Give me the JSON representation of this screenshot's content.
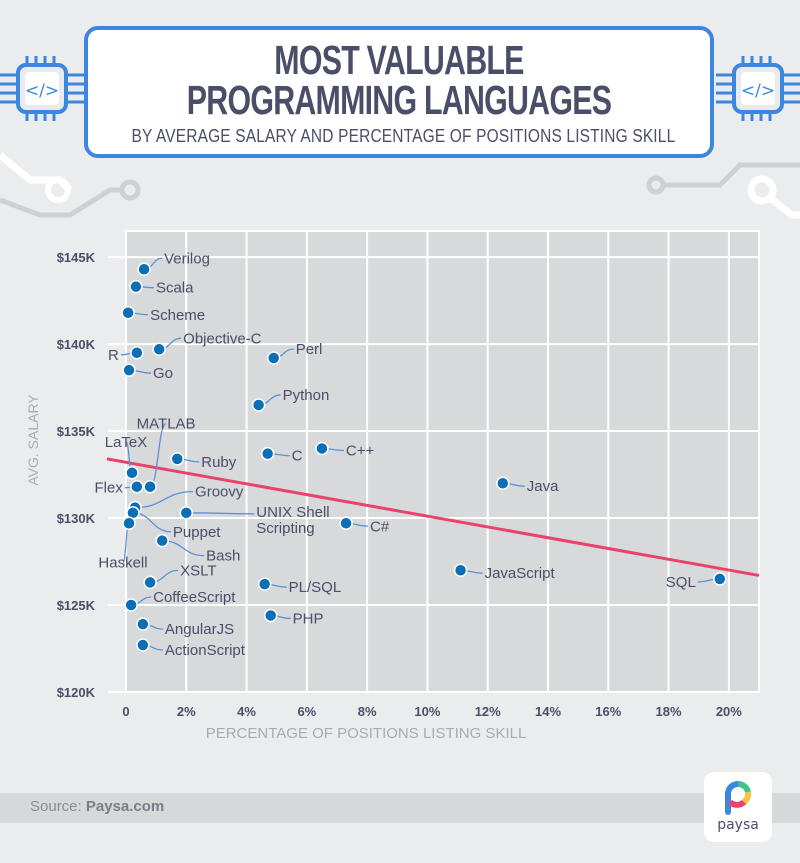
{
  "header": {
    "title_line1": "MOST VALUABLE",
    "title_line2": "PROGRAMMING LANGUAGES",
    "subtitle": "BY AVERAGE SALARY AND PERCENTAGE OF POSITIONS LISTING SKILL",
    "chip_icon": "code-brackets-icon",
    "chip_symbol": "</>"
  },
  "footer": {
    "source_prefix": "Source: ",
    "source_name": "Paysa.com",
    "logo_text": "paysa"
  },
  "colors": {
    "accent_blue": "#3c86e0",
    "dot": "#0a6fb6",
    "trend": "#e8436a",
    "text_dark": "#4a4e68",
    "plot_bg": "#d8d9db"
  },
  "chart_data": {
    "type": "scatter",
    "title": "Most Valuable Programming Languages",
    "subtitle": "By average salary and percentage of positions listing skill",
    "xlabel": "PERCENTAGE OF POSITIONS LISTING SKILL",
    "ylabel": "AVG. SALARY",
    "xlim": [
      0,
      21
    ],
    "ylim": [
      120,
      146.5
    ],
    "x_ticks": [
      0,
      2,
      4,
      6,
      8,
      10,
      12,
      14,
      16,
      18,
      20
    ],
    "x_tick_labels": [
      "0",
      "2%",
      "4%",
      "6%",
      "8%",
      "10%",
      "12%",
      "14%",
      "16%",
      "18%",
      "20%"
    ],
    "y_ticks": [
      120,
      125,
      130,
      135,
      140,
      145
    ],
    "y_tick_labels": [
      "$120K",
      "$125K",
      "$130K",
      "$135K",
      "$140K",
      "$145K"
    ],
    "grid": true,
    "points": [
      {
        "label": "Verilog",
        "x": 0.6,
        "y": 144.3
      },
      {
        "label": "Scala",
        "x": 0.33,
        "y": 143.3
      },
      {
        "label": "Scheme",
        "x": 0.07,
        "y": 141.8
      },
      {
        "label": "R",
        "x": 0.36,
        "y": 139.5
      },
      {
        "label": "Objective-C",
        "x": 1.1,
        "y": 139.7
      },
      {
        "label": "Go",
        "x": 0.1,
        "y": 138.5
      },
      {
        "label": "Perl",
        "x": 4.9,
        "y": 139.2
      },
      {
        "label": "Python",
        "x": 4.4,
        "y": 136.5
      },
      {
        "label": "C",
        "x": 4.7,
        "y": 133.7
      },
      {
        "label": "C++",
        "x": 6.5,
        "y": 134.0
      },
      {
        "label": "Ruby",
        "x": 1.7,
        "y": 133.4
      },
      {
        "label": "LaTeX",
        "x": 0.2,
        "y": 132.6
      },
      {
        "label": "MATLAB",
        "x": 0.8,
        "y": 131.8
      },
      {
        "label": "Flex",
        "x": 0.36,
        "y": 131.8
      },
      {
        "label": "Groovy",
        "x": 0.3,
        "y": 130.6
      },
      {
        "label": "Puppet",
        "x": 0.23,
        "y": 130.3
      },
      {
        "label": "Haskell",
        "x": 0.1,
        "y": 129.7
      },
      {
        "label": "UNIX Shell Scripting",
        "x": 2.0,
        "y": 130.3
      },
      {
        "label": "Bash",
        "x": 1.2,
        "y": 128.7
      },
      {
        "label": "C#",
        "x": 7.3,
        "y": 129.7
      },
      {
        "label": "Java",
        "x": 12.5,
        "y": 132.0
      },
      {
        "label": "JavaScript",
        "x": 11.1,
        "y": 127.0
      },
      {
        "label": "SQL",
        "x": 19.7,
        "y": 126.5
      },
      {
        "label": "XSLT",
        "x": 0.8,
        "y": 126.3
      },
      {
        "label": "CoffeeScript",
        "x": 0.17,
        "y": 125.0
      },
      {
        "label": "PL/SQL",
        "x": 4.6,
        "y": 126.2
      },
      {
        "label": "PHP",
        "x": 4.8,
        "y": 124.4
      },
      {
        "label": "AngularJS",
        "x": 0.56,
        "y": 123.9
      },
      {
        "label": "ActionScript",
        "x": 0.56,
        "y": 122.7
      }
    ],
    "trendline": {
      "x": [
        -0.63,
        21
      ],
      "y": [
        133.4,
        126.7
      ]
    }
  }
}
